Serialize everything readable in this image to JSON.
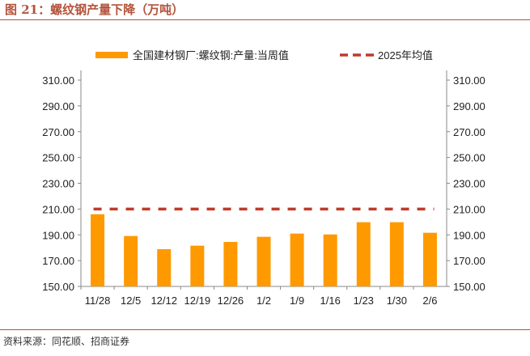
{
  "title": "图 21：螺纹钢产量下降（万吨）",
  "source": "资料来源：同花顺、招商证券",
  "colors": {
    "bar": "#ff9900",
    "avg": "#c0392b",
    "title": "#b4533a"
  },
  "chart_data": {
    "type": "bar",
    "categories": [
      "11/28",
      "12/5",
      "12/12",
      "12/19",
      "12/26",
      "1/2",
      "1/9",
      "1/16",
      "1/23",
      "1/30",
      "2/6"
    ],
    "series": [
      {
        "name": "全国建材钢厂:螺纹钢:产量:当周值",
        "type": "bar",
        "values": [
          206.0,
          189.1,
          178.9,
          181.6,
          184.5,
          188.5,
          191.0,
          190.3,
          199.8,
          199.8,
          191.6
        ]
      },
      {
        "name": "2025年均值",
        "type": "line-dashed",
        "values": [
          210,
          210,
          210,
          210,
          210,
          210,
          210,
          210,
          210,
          210,
          210
        ]
      }
    ],
    "ylim": [
      150,
      310
    ],
    "yticks": [
      "150.00",
      "170.00",
      "190.00",
      "210.00",
      "230.00",
      "250.00",
      "270.00",
      "290.00",
      "310.00"
    ],
    "legend": "top",
    "grid": false
  }
}
